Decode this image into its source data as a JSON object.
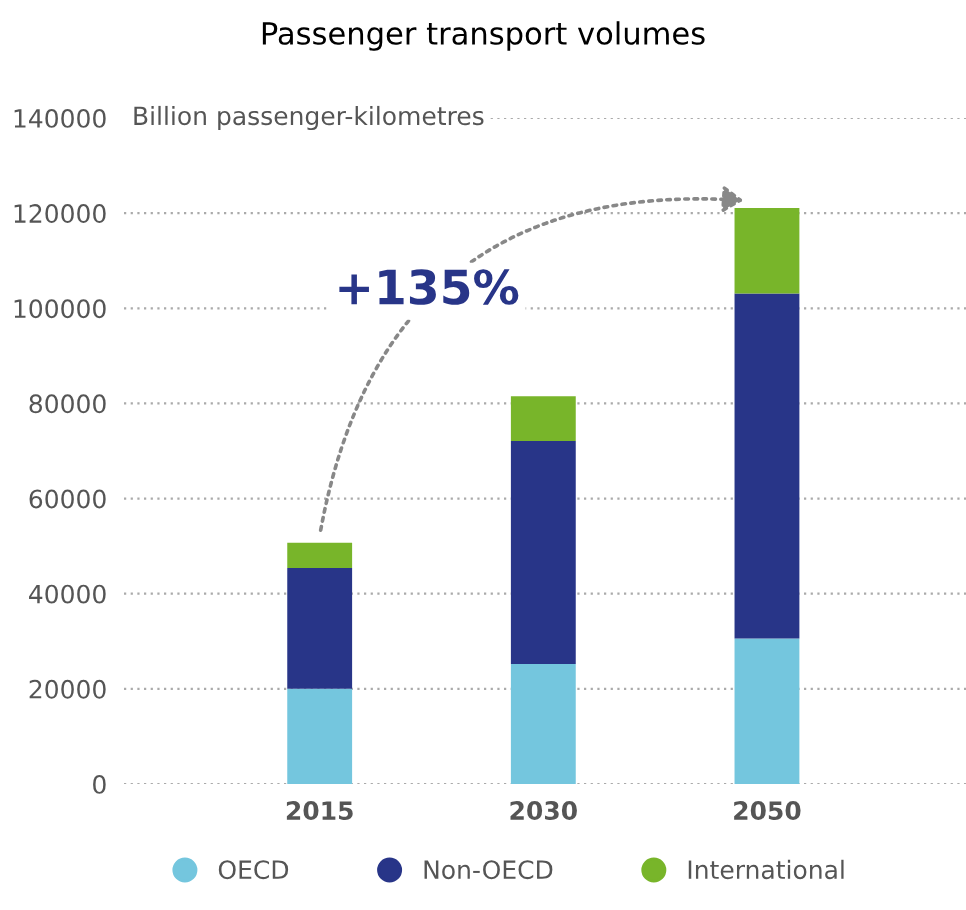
{
  "chart_data": {
    "type": "bar",
    "title": "Passenger transport volumes",
    "ylabel": "Billion passenger-kilometres",
    "stacked": true,
    "categories": [
      "2015",
      "2030",
      "2050"
    ],
    "series": [
      {
        "name": "OECD",
        "color": "#74c6de",
        "values": [
          20000,
          25200,
          30600
        ]
      },
      {
        "name": "Non-OECD",
        "color": "#283588",
        "values": [
          25400,
          46900,
          72500
        ]
      },
      {
        "name": "International",
        "color": "#78b52a",
        "values": [
          5300,
          9400,
          18000
        ]
      }
    ],
    "ylim": [
      0,
      140000
    ],
    "yticks": [
      0,
      20000,
      40000,
      60000,
      80000,
      100000,
      120000,
      140000
    ],
    "grid": "y",
    "legend": "bottom",
    "marker": "circle",
    "annotations": [
      "+135%"
    ]
  }
}
